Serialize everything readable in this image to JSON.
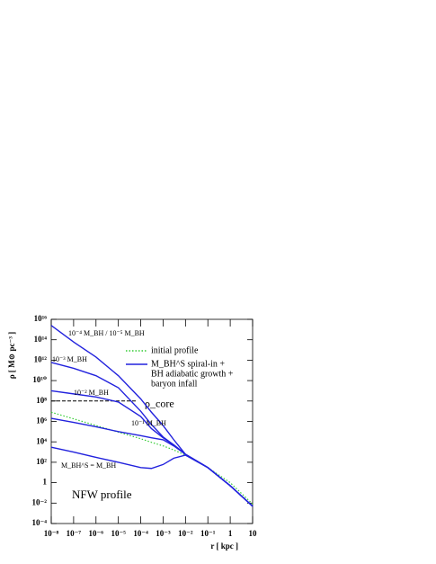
{
  "chart_data": {
    "type": "line",
    "xlabel": "r [ kpc ]",
    "ylabel": "ρ [ M⊙ pc⁻³ ]",
    "xlog": true,
    "ylog": true,
    "xlim": [
      1e-08,
      10
    ],
    "ylim": [
      0.0001,
      1e+16
    ],
    "xticks": [
      {
        "value": 1e-08,
        "label": "10⁻⁸"
      },
      {
        "value": 1e-07,
        "label": "10⁻⁷"
      },
      {
        "value": 1e-06,
        "label": "10⁻⁶"
      },
      {
        "value": 1e-05,
        "label": "10⁻⁵"
      },
      {
        "value": 0.0001,
        "label": "10⁻⁴"
      },
      {
        "value": 0.001,
        "label": "10⁻³"
      },
      {
        "value": 0.01,
        "label": "10⁻²"
      },
      {
        "value": 0.1,
        "label": "10⁻¹"
      },
      1,
      10
    ],
    "yticks": [
      {
        "value": 0.0001,
        "label": "10⁻⁴"
      },
      {
        "value": 0.01,
        "label": "10⁻²"
      },
      1,
      {
        "value": 100,
        "label": "10²"
      },
      {
        "value": 10000.0,
        "label": "10⁴"
      },
      {
        "value": 1000000.0,
        "label": "10⁶"
      },
      {
        "value": 100000000.0,
        "label": "10⁸"
      },
      {
        "value": 10000000000.0,
        "label": "10¹⁰"
      },
      {
        "value": 1000000000000.0,
        "label": "10¹²"
      },
      {
        "value": 100000000000000.0,
        "label": "10¹⁴"
      },
      {
        "value": 1e+16,
        "label": "10¹⁶"
      }
    ],
    "x": [
      1e-08,
      1e-07,
      1e-06,
      1e-05,
      0.0001,
      0.0003,
      0.001,
      0.003,
      0.01,
      0.1,
      1,
      10
    ],
    "series": [
      {
        "name": "initial profile",
        "color": "#33cc33",
        "dash": "dotted",
        "values": [
          8000000.0,
          1800000.0,
          400000.0,
          90000.0,
          20000.0,
          9000.0,
          4000.0,
          1600.0,
          500,
          30,
          1,
          0.008
        ]
      },
      {
        "name": "10⁻⁴ M_BH / 10⁻⁵ M_BH",
        "color": "#2222dd",
        "values": [
          2500000000000000.0,
          60000000000000.0,
          2000000000000.0,
          30000000000.0,
          160000000.0,
          8000000.0,
          400000.0,
          16000.0,
          600,
          30,
          0.5,
          0.005
        ]
      },
      {
        "name": "10⁻³ M_BH",
        "color": "#2222dd",
        "values": [
          600000000000.0,
          160000000000.0,
          30000000000.0,
          2000000000.0,
          10000000.0,
          500000.0,
          30000.0,
          5000.0,
          600,
          30,
          0.5,
          0.005
        ]
      },
      {
        "name": "10⁻² M_BH",
        "color": "#2222dd",
        "values": [
          1000000000.0,
          500000000.0,
          250000000.0,
          80000000.0,
          3000000.0,
          200000.0,
          25000.0,
          5000.0,
          600,
          30,
          0.5,
          0.005
        ]
      },
      {
        "name": "10⁻¹ M_BH",
        "color": "#2222dd",
        "values": [
          2000000.0,
          800000.0,
          300000.0,
          100000.0,
          40000.0,
          25000.0,
          16000.0,
          4000.0,
          600,
          30,
          0.5,
          0.005
        ]
      },
      {
        "name": "M_BH^S = M_BH",
        "color": "#2222dd",
        "values": [
          3000.0,
          1000.0,
          300,
          100,
          30,
          25,
          60,
          250,
          500,
          30,
          0.5,
          0.005
        ]
      }
    ],
    "legend": {
      "corner": "upper right",
      "entries": [
        {
          "lines": [
            "initial profile"
          ],
          "color": "#33cc33",
          "dash": "dotted"
        },
        {
          "lines": [
            "M_BH^S spiral-in +",
            "BH adiabatic growth +",
            "baryon infall"
          ],
          "color": "#2222dd",
          "dash": "solid"
        }
      ]
    },
    "core_line": {
      "label": "ρ_core",
      "y": 100000000.0,
      "x": [
        1e-08,
        6e-05
      ]
    },
    "annotation": "NFW profile"
  }
}
